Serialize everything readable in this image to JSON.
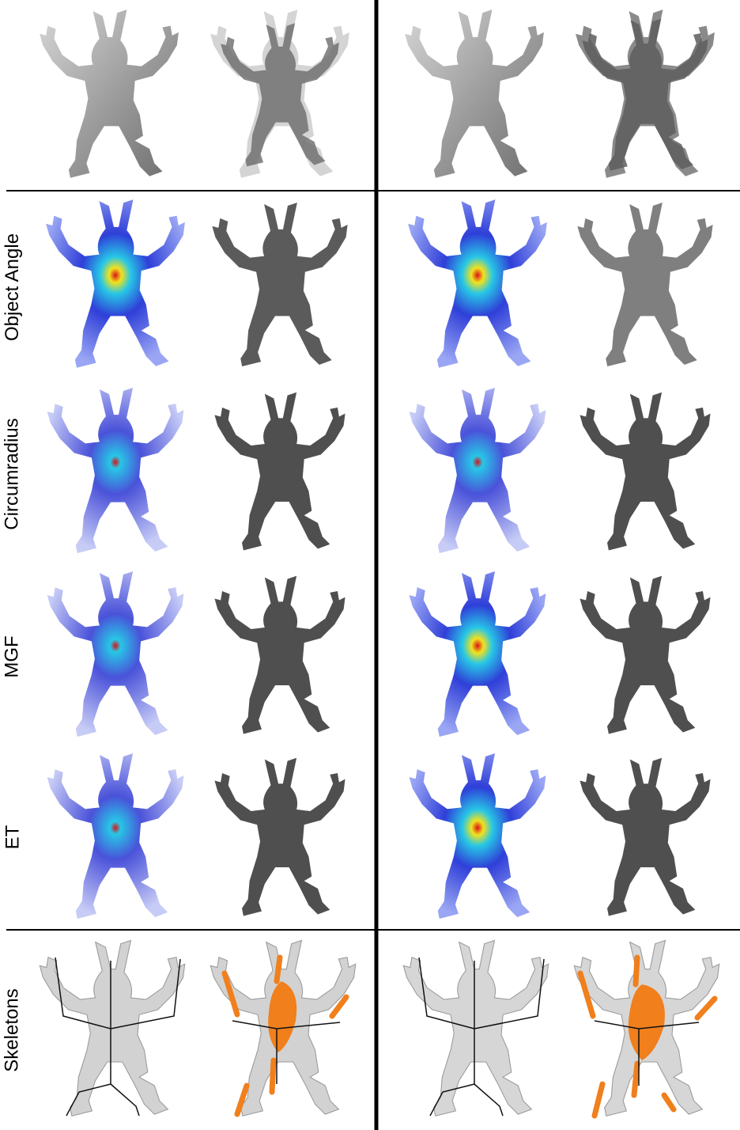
{
  "row_labels": {
    "object_angle": "Object Angle",
    "circumradius": "Circumradius",
    "mgf": "MGF",
    "et": "ET",
    "skeletons": "Skeletons"
  },
  "colors": {
    "surface": "#9a9a9a",
    "surface_dark": "#5a5a5a",
    "ghost": "#cfcfcf",
    "heat_low": "#2f3fd8",
    "heat_mid": "#27c7e6",
    "heat_high": "#f2e21b",
    "heat_max": "#d8141a",
    "pruned": "#4a4a4a",
    "skeleton_curve": "#111111",
    "skeleton_sheet": "#f07f1c"
  },
  "icons": [
    "armadillo-figure"
  ]
}
